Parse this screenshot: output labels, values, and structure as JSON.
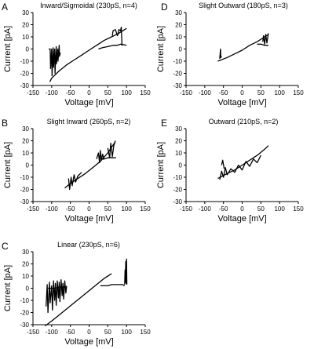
{
  "figure": {
    "background": "#ffffff",
    "trace_color": "#000000"
  },
  "chart_data": [
    {
      "panel": "A",
      "type": "line",
      "title": "Inward/Sigmoidal (230pS, n=4)",
      "xlabel": "Voltage [mV]",
      "ylabel": "Current [pA]",
      "xlim": [
        -150,
        150
      ],
      "ylim": [
        -30,
        30
      ],
      "xticks": [
        "-150",
        "-100",
        "-50",
        "0",
        "50",
        "100",
        "150"
      ],
      "yticks": [
        "30",
        "20",
        "10",
        "0",
        "-10",
        "-20",
        "-30"
      ],
      "grid": false,
      "series": [
        {
          "x": [
            -105,
            -100,
            -80,
            -60,
            -40,
            -20,
            0,
            20,
            40,
            60,
            80,
            95,
            100
          ],
          "y": [
            -27,
            -24,
            -18,
            -13,
            -9,
            -5,
            -1,
            3,
            7,
            10,
            13,
            16,
            17
          ]
        },
        {
          "x": [
            -108,
            -104,
            -103,
            -100,
            -99,
            -96,
            -95,
            -92,
            -91,
            -88,
            -87,
            -84,
            -83,
            -80,
            -79,
            -77
          ],
          "y": [
            0,
            0,
            -16,
            0,
            -22,
            1,
            -15,
            0,
            -20,
            2,
            -12,
            0,
            -10,
            3,
            -6,
            -3
          ]
        },
        {
          "x": [
            25,
            35,
            50,
            65,
            75,
            85,
            100
          ],
          "y": [
            0,
            1,
            2,
            3,
            3,
            4,
            3
          ]
        },
        {
          "x": [
            62,
            64,
            70,
            76,
            80,
            84,
            86,
            88,
            90
          ],
          "y": [
            11,
            15,
            16,
            11,
            16,
            15,
            18,
            3,
            4
          ]
        }
      ]
    },
    {
      "panel": "B",
      "type": "line",
      "title": "Slight Inward (260pS, n=2)",
      "xlabel": "Voltage [mV]",
      "ylabel": "Current [pA]",
      "xlim": [
        -150,
        150
      ],
      "ylim": [
        -30,
        30
      ],
      "xticks": [
        "-150",
        "-100",
        "-50",
        "0",
        "50",
        "100",
        "150"
      ],
      "yticks": [
        "30",
        "20",
        "10",
        "0",
        "-10",
        "-20",
        "-30"
      ],
      "grid": false,
      "series": [
        {
          "x": [
            -65,
            -50,
            -30,
            -10,
            10,
            30,
            50,
            65,
            70
          ],
          "y": [
            -19,
            -15,
            -11,
            -7,
            -2,
            3,
            10,
            17,
            19
          ]
        },
        {
          "x": [
            -55,
            -52,
            -48,
            -45,
            -40,
            -36,
            -30,
            -20
          ],
          "y": [
            -11,
            -20,
            -10,
            -17,
            -8,
            -14,
            -9,
            -6
          ]
        },
        {
          "x": [
            20,
            25,
            28,
            30,
            33,
            36,
            40
          ],
          "y": [
            5,
            10,
            2,
            12,
            4,
            9,
            5
          ]
        },
        {
          "x": [
            30,
            40,
            50,
            60,
            70,
            72
          ],
          "y": [
            5,
            5,
            6,
            6,
            6,
            6
          ]
        },
        {
          "x": [
            50,
            55,
            58,
            62,
            66,
            70
          ],
          "y": [
            14,
            6,
            18,
            7,
            16,
            20
          ]
        }
      ]
    },
    {
      "panel": "C",
      "type": "line",
      "title": "Linear (230pS, n=6)",
      "xlabel": "Voltage [mV]",
      "ylabel": "Current [pA]",
      "xlim": [
        -150,
        150
      ],
      "ylim": [
        -30,
        30
      ],
      "xticks": [
        "-150",
        "-100",
        "-50",
        "0",
        "50",
        "100",
        "150"
      ],
      "yticks": [
        "30",
        "20",
        "10",
        "0",
        "-10",
        "-20",
        "-30"
      ],
      "grid": false,
      "series": [
        {
          "x": [
            -118,
            -100,
            -80,
            -60,
            -40,
            -20,
            0,
            20,
            40,
            60
          ],
          "y": [
            -31,
            -27,
            -22,
            -17,
            -12,
            -7,
            -2,
            3,
            8,
            12
          ]
        },
        {
          "x": [
            -115,
            -112,
            -110,
            -106,
            -104,
            -100,
            -98,
            -95,
            -92,
            -90,
            -88,
            -85,
            -82,
            -80,
            -78,
            -75,
            -72,
            -70,
            -68,
            -65,
            -62,
            -60
          ],
          "y": [
            -15,
            3,
            -20,
            5,
            -12,
            2,
            -18,
            6,
            -10,
            4,
            -14,
            6,
            -8,
            5,
            -11,
            7,
            -6,
            4,
            -9,
            6,
            -4,
            2
          ]
        },
        {
          "x": [
            -110,
            -100,
            -90,
            -80,
            -70,
            -60
          ],
          "y": [
            0,
            0,
            0,
            1,
            1,
            1
          ]
        },
        {
          "x": [
            30,
            40,
            50,
            60,
            70,
            80,
            90,
            95
          ],
          "y": [
            2,
            2,
            2,
            3,
            3,
            3,
            3,
            2
          ]
        },
        {
          "x": [
            95,
            96,
            97,
            98,
            99,
            100,
            101
          ],
          "y": [
            3,
            15,
            5,
            22,
            4,
            24,
            3
          ]
        }
      ]
    },
    {
      "panel": "D",
      "type": "line",
      "title": "Slight Outward (180pS, n=3)",
      "xlabel": "Voltage [mV]",
      "ylabel": "Current [pA]",
      "xlim": [
        -150,
        150
      ],
      "ylim": [
        -30,
        30
      ],
      "xticks": [
        "-150",
        "-100",
        "-50",
        "0",
        "50",
        "100",
        "150"
      ],
      "yticks": [
        "30",
        "20",
        "10",
        "0",
        "-10",
        "-20",
        "-30"
      ],
      "grid": false,
      "series": [
        {
          "x": [
            -65,
            -40,
            -20,
            0,
            20,
            40,
            60,
            70
          ],
          "y": [
            -10,
            -7,
            -4,
            -1,
            3,
            6,
            10,
            12
          ]
        },
        {
          "x": [
            -60,
            -58,
            -57,
            -55
          ],
          "y": [
            -8,
            0,
            -7,
            -6
          ]
        },
        {
          "x": [
            40,
            50,
            60,
            70
          ],
          "y": [
            4,
            4,
            3,
            3
          ]
        },
        {
          "x": [
            55,
            57,
            60,
            63,
            66,
            70
          ],
          "y": [
            6,
            11,
            4,
            12,
            5,
            13
          ]
        }
      ]
    },
    {
      "panel": "E",
      "type": "line",
      "title": "Outward (210pS, n=2)",
      "xlabel": "Voltage [mV]",
      "ylabel": "Current [pA]",
      "xlim": [
        -150,
        150
      ],
      "ylim": [
        -30,
        30
      ],
      "xticks": [
        "-150",
        "-100",
        "-50",
        "0",
        "50",
        "100",
        "150"
      ],
      "yticks": [
        "30",
        "20",
        "10",
        "0",
        "-10",
        "-20",
        "-30"
      ],
      "grid": false,
      "series": [
        {
          "x": [
            -65,
            -40,
            -20,
            0,
            20,
            40,
            60,
            70
          ],
          "y": [
            -11,
            -7,
            -4,
            0,
            4,
            8,
            13,
            16
          ]
        },
        {
          "x": [
            -60,
            -55,
            -50,
            -45,
            -40,
            -30,
            -20,
            -10,
            0,
            10,
            20,
            30,
            40,
            50
          ],
          "y": [
            -12,
            -5,
            -10,
            -2,
            -8,
            -3,
            -6,
            0,
            -4,
            3,
            -1,
            5,
            2,
            8
          ]
        },
        {
          "x": [
            -55,
            -52,
            -48
          ],
          "y": [
            0,
            4,
            -3
          ]
        }
      ]
    }
  ]
}
